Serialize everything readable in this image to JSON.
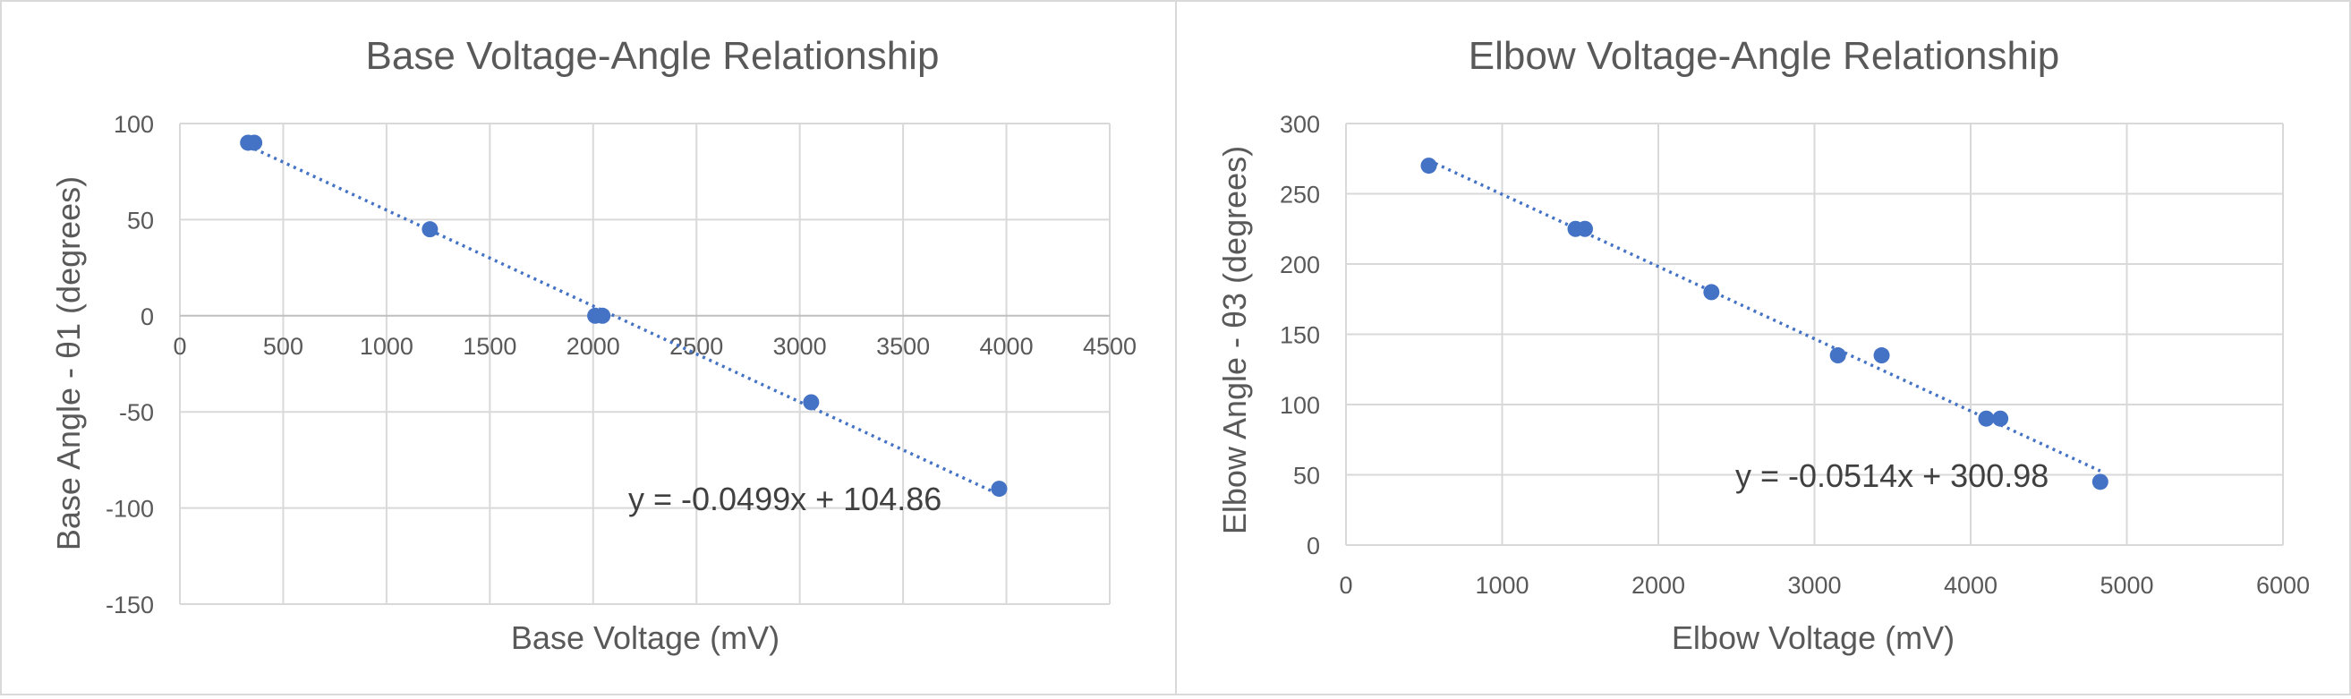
{
  "chart_data": [
    {
      "type": "scatter",
      "title": "Base Voltage-Angle Relationship",
      "xlabel": "Base Voltage (mV)",
      "ylabel": "Base Angle - θ1 (degrees)",
      "xlim": [
        0,
        4500
      ],
      "ylim": [
        -150,
        100
      ],
      "xticks": [
        0,
        500,
        1000,
        1500,
        2000,
        2500,
        3000,
        3500,
        4000,
        4500
      ],
      "yticks": [
        -150,
        -100,
        -50,
        0,
        50,
        100
      ],
      "xtick_labels": [
        "0",
        "500",
        "1000",
        "1500",
        "2000",
        "2500",
        "3000",
        "3500",
        "4000",
        "4500"
      ],
      "ytick_labels": [
        "-150",
        "-100",
        "-50",
        "0",
        "50",
        "100"
      ],
      "grid": true,
      "x_axis_at_zero": true,
      "points": [
        {
          "x": 330,
          "y": 90
        },
        {
          "x": 360,
          "y": 90
        },
        {
          "x": 1210,
          "y": 45
        },
        {
          "x": 2010,
          "y": 0
        },
        {
          "x": 2045,
          "y": 0
        },
        {
          "x": 3055,
          "y": -45
        },
        {
          "x": 3965,
          "y": -90
        }
      ],
      "trendline": {
        "slope": -0.0499,
        "intercept": 104.86,
        "x_start": 330,
        "x_end": 3965
      },
      "equation_label": "y = -0.0499x + 104.86",
      "colors": {
        "marker": "#4472c4",
        "trendline": "#4472c4"
      }
    },
    {
      "type": "scatter",
      "title": "Elbow Voltage-Angle Relationship",
      "xlabel": "Elbow Voltage (mV)",
      "ylabel": "Elbow Angle - θ3 (degrees)",
      "xlim": [
        0,
        6000
      ],
      "ylim": [
        0,
        300
      ],
      "xticks": [
        0,
        1000,
        2000,
        3000,
        4000,
        5000,
        6000
      ],
      "yticks": [
        0,
        50,
        100,
        150,
        200,
        250,
        300
      ],
      "xtick_labels": [
        "0",
        "1000",
        "2000",
        "3000",
        "4000",
        "5000",
        "6000"
      ],
      "ytick_labels": [
        "0",
        "50",
        "100",
        "150",
        "200",
        "250",
        "300"
      ],
      "grid": true,
      "x_axis_at_zero": false,
      "points": [
        {
          "x": 530,
          "y": 270
        },
        {
          "x": 1470,
          "y": 225
        },
        {
          "x": 1530,
          "y": 225
        },
        {
          "x": 2340,
          "y": 180
        },
        {
          "x": 3150,
          "y": 135
        },
        {
          "x": 3430,
          "y": 135
        },
        {
          "x": 4100,
          "y": 90
        },
        {
          "x": 4190,
          "y": 90
        },
        {
          "x": 4830,
          "y": 45
        }
      ],
      "trendline": {
        "slope": -0.0514,
        "intercept": 300.98,
        "x_start": 530,
        "x_end": 4830
      },
      "equation_label": "y = -0.0514x + 300.98",
      "colors": {
        "marker": "#4472c4",
        "trendline": "#4472c4"
      }
    }
  ]
}
